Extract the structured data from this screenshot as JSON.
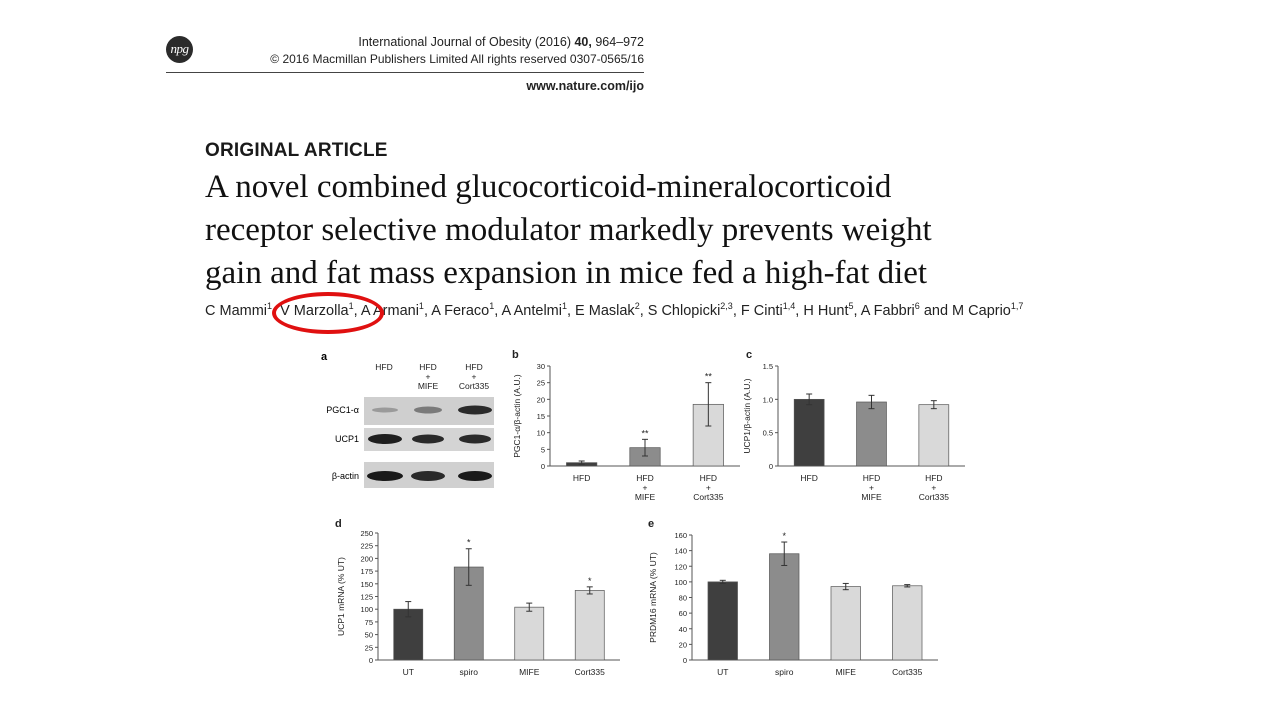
{
  "header": {
    "logo_text": "npg",
    "journal_line_prefix": "International Journal of Obesity (2016) ",
    "journal_volume": "40,",
    "journal_pages": " 964–972",
    "copyright_line": "© 2016 Macmillan Publishers Limited   All rights reserved 0307-0565/16",
    "url": "www.nature.com/ijo"
  },
  "article": {
    "type": "ORIGINAL ARTICLE",
    "title_lines": [
      "A novel combined glucocorticoid-mineralocorticoid",
      "receptor selective modulator markedly prevents weight",
      "gain and fat mass expansion in mice fed a high-fat diet"
    ],
    "authors": [
      {
        "name": "C Mammi",
        "sup": "1"
      },
      {
        "name": "V Marzolla",
        "sup": "1"
      },
      {
        "name": "A Armani",
        "sup": "1"
      },
      {
        "name": "A Feraco",
        "sup": "1"
      },
      {
        "name": "A Antelmi",
        "sup": "1"
      },
      {
        "name": "E Maslak",
        "sup": "2"
      },
      {
        "name": "S Chlopicki",
        "sup": "2,3"
      },
      {
        "name": "F Cinti",
        "sup": "1,4"
      },
      {
        "name": "H Hunt",
        "sup": "5"
      },
      {
        "name": "A Fabbri",
        "sup": "6"
      },
      {
        "name": "M Caprio",
        "sup": "1,7"
      }
    ],
    "highlight_color": "#e01010"
  },
  "blot": {
    "letter": "a",
    "column_headers": [
      [
        "HFD"
      ],
      [
        "HFD",
        "+",
        "MIFE"
      ],
      [
        "HFD",
        "+",
        "Cort335"
      ]
    ],
    "row_labels": [
      "PGC1-α",
      "UCP1",
      "β-actin"
    ]
  },
  "chart_data": [
    {
      "panel": "b",
      "type": "bar",
      "categories": [
        [
          "HFD"
        ],
        [
          "HFD",
          "+",
          "MIFE"
        ],
        [
          "HFD",
          "+",
          "Cort335"
        ]
      ],
      "values": [
        1,
        5.5,
        18.5
      ],
      "errors": [
        0.5,
        2.5,
        6.5
      ],
      "annotations": [
        "",
        "**",
        "**"
      ],
      "colors": [
        "#3f3f3f",
        "#8c8c8c",
        "#d9d9d9"
      ],
      "ylabel": "PGC1-α/β-actin (A.U.)",
      "ylim": [
        0,
        30
      ],
      "yticks": [
        0,
        5,
        10,
        15,
        20,
        25,
        30
      ],
      "ytick_labels": [
        "0",
        "5",
        "10",
        "15",
        "20",
        "25",
        "30"
      ]
    },
    {
      "panel": "c",
      "type": "bar",
      "categories": [
        [
          "HFD"
        ],
        [
          "HFD",
          "+",
          "MIFE"
        ],
        [
          "HFD",
          "+",
          "Cort335"
        ]
      ],
      "values": [
        1.0,
        0.96,
        0.92
      ],
      "errors": [
        0.08,
        0.1,
        0.06
      ],
      "annotations": [
        "",
        "",
        ""
      ],
      "colors": [
        "#3f3f3f",
        "#8c8c8c",
        "#d9d9d9"
      ],
      "ylabel": "UCP1/β-actin (A.U.)",
      "ylim": [
        0,
        1.5
      ],
      "yticks": [
        0,
        0.5,
        1.0,
        1.5
      ],
      "ytick_labels": [
        "0",
        "0.5",
        "1.0",
        "1.5"
      ]
    },
    {
      "panel": "d",
      "type": "bar",
      "categories": [
        [
          "UT"
        ],
        [
          "spiro"
        ],
        [
          "MIFE"
        ],
        [
          "Cort335"
        ]
      ],
      "values": [
        100,
        183,
        104,
        137
      ],
      "errors": [
        15,
        36,
        8,
        7
      ],
      "annotations": [
        "",
        "*",
        "",
        "*"
      ],
      "colors": [
        "#3f3f3f",
        "#8c8c8c",
        "#d9d9d9",
        "#d9d9d9"
      ],
      "ylabel": "UCP1 mRNA   (% UT)",
      "ylim": [
        0,
        250
      ],
      "yticks": [
        0,
        25,
        50,
        75,
        100,
        125,
        150,
        175,
        200,
        225,
        250
      ],
      "ytick_labels": [
        "0",
        "25",
        "50",
        "75",
        "100",
        "125",
        "150",
        "175",
        "200",
        "225",
        "250"
      ]
    },
    {
      "panel": "e",
      "type": "bar",
      "categories": [
        [
          "UT"
        ],
        [
          "spiro"
        ],
        [
          "MIFE"
        ],
        [
          "Cort335"
        ]
      ],
      "values": [
        100,
        136,
        94,
        95
      ],
      "errors": [
        2,
        15,
        4,
        1.5
      ],
      "annotations": [
        "",
        "*",
        "",
        ""
      ],
      "colors": [
        "#3f3f3f",
        "#8c8c8c",
        "#d9d9d9",
        "#d9d9d9"
      ],
      "ylabel": "PRDM16 mRNA   (% UT)",
      "ylim": [
        0,
        160
      ],
      "yticks": [
        0,
        20,
        40,
        60,
        80,
        100,
        120,
        140,
        160
      ],
      "ytick_labels": [
        "0",
        "20",
        "40",
        "60",
        "80",
        "100",
        "120",
        "140",
        "160"
      ]
    }
  ]
}
